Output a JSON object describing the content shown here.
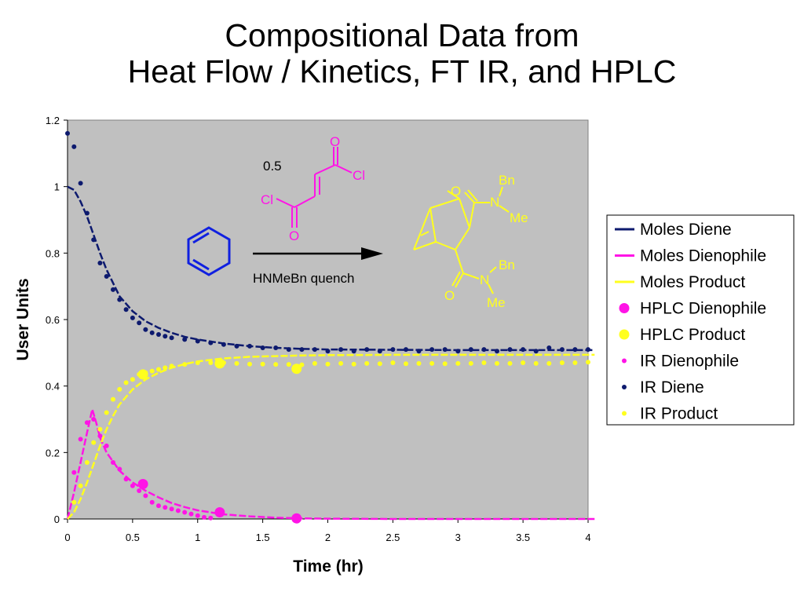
{
  "title_line1": "Compositional Data from",
  "title_line2": "Heat Flow / Kinetics, FT IR, and HPLC",
  "colors": {
    "diene": "#0d1a6e",
    "dienophile": "#ff14e6",
    "product": "#ffff1e",
    "plot_bg": "#c0c0c0",
    "bond_blue": "#1020e0"
  },
  "scheme": {
    "coefficient": "0.5",
    "reagent_label": "HNMeBn quench",
    "atom_O": "O",
    "atom_Cl": "Cl",
    "atom_N": "N",
    "group_Bn": "Bn",
    "group_Me": "Me"
  },
  "chart_data": {
    "type": "scatter",
    "xlabel": "Time (hr)",
    "ylabel": "User Units",
    "xlim": [
      0,
      4
    ],
    "ylim": [
      0,
      1.2
    ],
    "xticks": [
      "0",
      "0.5",
      "1",
      "1.5",
      "2",
      "2.5",
      "3",
      "3.5",
      "4"
    ],
    "yticks": [
      "0",
      "0.2",
      "0.4",
      "0.6",
      "0.8",
      "1",
      "1.2"
    ],
    "grid": false,
    "legend_position": "right",
    "series": [
      {
        "name": "Moles Diene",
        "kind": "line",
        "color": "#0d1a6e",
        "points": [
          [
            0,
            1.0
          ],
          [
            0.05,
            0.99
          ],
          [
            0.1,
            0.955
          ],
          [
            0.15,
            0.91
          ],
          [
            0.2,
            0.855
          ],
          [
            0.25,
            0.8
          ],
          [
            0.3,
            0.75
          ],
          [
            0.35,
            0.71
          ],
          [
            0.4,
            0.67
          ],
          [
            0.5,
            0.625
          ],
          [
            0.6,
            0.595
          ],
          [
            0.7,
            0.575
          ],
          [
            0.8,
            0.56
          ],
          [
            0.9,
            0.548
          ],
          [
            1.0,
            0.54
          ],
          [
            1.2,
            0.528
          ],
          [
            1.4,
            0.52
          ],
          [
            1.6,
            0.515
          ],
          [
            1.8,
            0.512
          ],
          [
            2.0,
            0.51
          ],
          [
            2.5,
            0.509
          ],
          [
            3.0,
            0.508
          ],
          [
            3.5,
            0.508
          ],
          [
            4.05,
            0.508
          ]
        ]
      },
      {
        "name": "Moles Dienophile",
        "kind": "line",
        "color": "#ff14e6",
        "points": [
          [
            0,
            0
          ],
          [
            0.05,
            0.08
          ],
          [
            0.1,
            0.17
          ],
          [
            0.15,
            0.26
          ],
          [
            0.19,
            0.33
          ],
          [
            0.22,
            0.29
          ],
          [
            0.25,
            0.245
          ],
          [
            0.3,
            0.2
          ],
          [
            0.4,
            0.145
          ],
          [
            0.5,
            0.11
          ],
          [
            0.6,
            0.085
          ],
          [
            0.7,
            0.065
          ],
          [
            0.8,
            0.048
          ],
          [
            0.9,
            0.036
          ],
          [
            1.0,
            0.026
          ],
          [
            1.2,
            0.014
          ],
          [
            1.4,
            0.008
          ],
          [
            1.6,
            0.004
          ],
          [
            1.8,
            0.002
          ],
          [
            2.0,
            0.001
          ],
          [
            2.5,
            0
          ],
          [
            3.0,
            0
          ],
          [
            3.5,
            0
          ],
          [
            4.05,
            0
          ]
        ]
      },
      {
        "name": "Moles Product",
        "kind": "line",
        "color": "#ffff1e",
        "points": [
          [
            0,
            0
          ],
          [
            0.05,
            0.02
          ],
          [
            0.1,
            0.06
          ],
          [
            0.15,
            0.11
          ],
          [
            0.2,
            0.165
          ],
          [
            0.25,
            0.22
          ],
          [
            0.3,
            0.27
          ],
          [
            0.35,
            0.31
          ],
          [
            0.4,
            0.345
          ],
          [
            0.5,
            0.39
          ],
          [
            0.6,
            0.42
          ],
          [
            0.7,
            0.44
          ],
          [
            0.8,
            0.455
          ],
          [
            0.9,
            0.466
          ],
          [
            1.0,
            0.474
          ],
          [
            1.2,
            0.483
          ],
          [
            1.4,
            0.488
          ],
          [
            1.6,
            0.49
          ],
          [
            1.8,
            0.492
          ],
          [
            2.0,
            0.493
          ],
          [
            2.5,
            0.494
          ],
          [
            3.0,
            0.494
          ],
          [
            3.5,
            0.494
          ],
          [
            4.05,
            0.494
          ]
        ]
      },
      {
        "name": "HPLC Dienophile",
        "kind": "marker-large",
        "color": "#ff14e6",
        "points": [
          [
            0.58,
            0.105
          ],
          [
            1.17,
            0.02
          ],
          [
            1.76,
            0.002
          ]
        ]
      },
      {
        "name": "HPLC Product",
        "kind": "marker-large",
        "color": "#ffff1e",
        "points": [
          [
            0.58,
            0.435
          ],
          [
            1.17,
            0.468
          ],
          [
            1.76,
            0.452
          ]
        ]
      },
      {
        "name": "IR Dienophile",
        "kind": "marker-small",
        "color": "#ff14e6",
        "points": [
          [
            0.05,
            0.14
          ],
          [
            0.1,
            0.24
          ],
          [
            0.15,
            0.29
          ],
          [
            0.2,
            0.3
          ],
          [
            0.25,
            0.25
          ],
          [
            0.3,
            0.22
          ],
          [
            0.35,
            0.17
          ],
          [
            0.4,
            0.15
          ],
          [
            0.45,
            0.12
          ],
          [
            0.5,
            0.1
          ],
          [
            0.55,
            0.085
          ],
          [
            0.6,
            0.07
          ],
          [
            0.65,
            0.05
          ],
          [
            0.7,
            0.04
          ],
          [
            0.75,
            0.035
          ],
          [
            0.8,
            0.03
          ],
          [
            0.85,
            0.025
          ],
          [
            0.9,
            0.02
          ],
          [
            0.95,
            0.015
          ],
          [
            1.0,
            0.01
          ],
          [
            1.05,
            0.005
          ],
          [
            1.1,
            0.003
          ]
        ]
      },
      {
        "name": "IR Diene",
        "kind": "marker-small",
        "color": "#0d1a6e",
        "points": [
          [
            0,
            1.16
          ],
          [
            0.05,
            1.12
          ],
          [
            0.1,
            1.01
          ],
          [
            0.15,
            0.92
          ],
          [
            0.2,
            0.84
          ],
          [
            0.25,
            0.77
          ],
          [
            0.3,
            0.73
          ],
          [
            0.35,
            0.69
          ],
          [
            0.4,
            0.66
          ],
          [
            0.45,
            0.63
          ],
          [
            0.5,
            0.605
          ],
          [
            0.55,
            0.59
          ],
          [
            0.6,
            0.57
          ],
          [
            0.65,
            0.56
          ],
          [
            0.7,
            0.555
          ],
          [
            0.75,
            0.55
          ],
          [
            0.8,
            0.545
          ],
          [
            0.9,
            0.54
          ],
          [
            1.0,
            0.535
          ],
          [
            1.1,
            0.53
          ],
          [
            1.2,
            0.525
          ],
          [
            1.3,
            0.52
          ],
          [
            1.4,
            0.52
          ],
          [
            1.5,
            0.515
          ],
          [
            1.6,
            0.515
          ],
          [
            1.7,
            0.51
          ],
          [
            1.8,
            0.51
          ],
          [
            1.9,
            0.51
          ],
          [
            2.0,
            0.505
          ],
          [
            2.1,
            0.51
          ],
          [
            2.2,
            0.505
          ],
          [
            2.3,
            0.51
          ],
          [
            2.4,
            0.505
          ],
          [
            2.5,
            0.51
          ],
          [
            2.6,
            0.51
          ],
          [
            2.7,
            0.505
          ],
          [
            2.8,
            0.51
          ],
          [
            2.9,
            0.51
          ],
          [
            3.0,
            0.505
          ],
          [
            3.1,
            0.51
          ],
          [
            3.2,
            0.51
          ],
          [
            3.3,
            0.505
          ],
          [
            3.4,
            0.51
          ],
          [
            3.5,
            0.51
          ],
          [
            3.6,
            0.505
          ],
          [
            3.7,
            0.515
          ],
          [
            3.8,
            0.51
          ],
          [
            3.9,
            0.51
          ],
          [
            4.0,
            0.51
          ]
        ]
      },
      {
        "name": "IR Product",
        "kind": "marker-small",
        "color": "#ffff1e",
        "points": [
          [
            0.05,
            0.05
          ],
          [
            0.1,
            0.1
          ],
          [
            0.15,
            0.17
          ],
          [
            0.2,
            0.23
          ],
          [
            0.25,
            0.27
          ],
          [
            0.3,
            0.32
          ],
          [
            0.35,
            0.36
          ],
          [
            0.4,
            0.39
          ],
          [
            0.45,
            0.41
          ],
          [
            0.5,
            0.42
          ],
          [
            0.55,
            0.435
          ],
          [
            0.6,
            0.44
          ],
          [
            0.65,
            0.445
          ],
          [
            0.7,
            0.45
          ],
          [
            0.75,
            0.455
          ],
          [
            0.8,
            0.46
          ],
          [
            0.9,
            0.465
          ],
          [
            1.0,
            0.47
          ],
          [
            1.1,
            0.47
          ],
          [
            1.2,
            0.47
          ],
          [
            1.3,
            0.468
          ],
          [
            1.4,
            0.466
          ],
          [
            1.5,
            0.466
          ],
          [
            1.6,
            0.465
          ],
          [
            1.7,
            0.465
          ],
          [
            1.8,
            0.464
          ],
          [
            1.9,
            0.468
          ],
          [
            2.0,
            0.466
          ],
          [
            2.1,
            0.468
          ],
          [
            2.2,
            0.466
          ],
          [
            2.3,
            0.468
          ],
          [
            2.4,
            0.467
          ],
          [
            2.5,
            0.47
          ],
          [
            2.6,
            0.467
          ],
          [
            2.7,
            0.468
          ],
          [
            2.8,
            0.468
          ],
          [
            2.9,
            0.467
          ],
          [
            3.0,
            0.468
          ],
          [
            3.1,
            0.468
          ],
          [
            3.2,
            0.47
          ],
          [
            3.3,
            0.468
          ],
          [
            3.4,
            0.468
          ],
          [
            3.5,
            0.47
          ],
          [
            3.6,
            0.468
          ],
          [
            3.7,
            0.468
          ],
          [
            3.8,
            0.47
          ],
          [
            3.9,
            0.47
          ],
          [
            4.0,
            0.472
          ]
        ]
      }
    ]
  }
}
